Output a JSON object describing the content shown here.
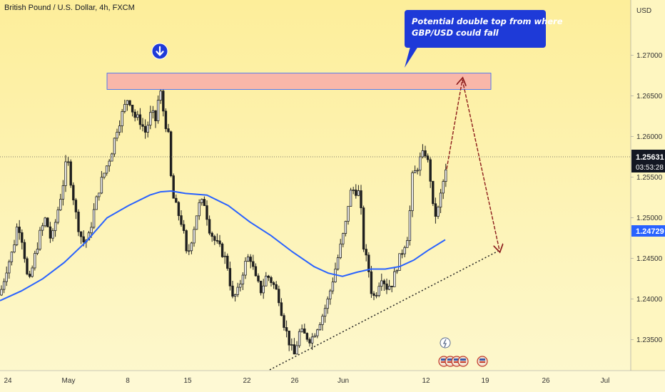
{
  "header": {
    "title": "British Pound / U.S. Dollar, 4h, FXCM"
  },
  "annotation": {
    "line1": "Potential double top from where",
    "line2": "GBP/USD could fall"
  },
  "colors": {
    "bg_top": "#fdee9a",
    "bg_bottom": "#fdf8cf",
    "candle": "#1f1f1f",
    "ma_line": "#2962ff",
    "zone_fill": "#f9b7a9",
    "zone_border": "#2962ff",
    "projection_arrow": "#8b1a1a",
    "trendline": "#1f1f1f",
    "annotation_bg": "#1e3ad8",
    "price_label_bg": "#131722",
    "ma_label_bg": "#2962ff"
  },
  "chart_data": {
    "type": "candlestick",
    "symbol": "GBP/USD",
    "interval": "4h",
    "currency_label": "USD",
    "ylim": [
      1.2312,
      1.2768
    ],
    "y_ticks": [
      "1.23500",
      "1.24000",
      "1.24500",
      "1.25000",
      "1.25500",
      "1.26000",
      "1.26500",
      "1.27000"
    ],
    "x_ticks": [
      "24",
      "May",
      "8",
      "15",
      "22",
      "26",
      "Jun",
      "12",
      "19",
      "26",
      "Jul"
    ],
    "current_price": "1.25631",
    "countdown": "03:53:28",
    "ma_value": "1.24729",
    "close_path": [
      [
        0,
        1.2405
      ],
      [
        10,
        1.244
      ],
      [
        18,
        1.246
      ],
      [
        25,
        1.2495
      ],
      [
        32,
        1.247
      ],
      [
        40,
        1.2415
      ],
      [
        48,
        1.245
      ],
      [
        56,
        1.248
      ],
      [
        64,
        1.25
      ],
      [
        72,
        1.247
      ],
      [
        80,
        1.2505
      ],
      [
        88,
        1.254
      ],
      [
        94,
        1.2575
      ],
      [
        102,
        1.253
      ],
      [
        108,
        1.2495
      ],
      [
        116,
        1.247
      ],
      [
        124,
        1.2475
      ],
      [
        132,
        1.251
      ],
      [
        140,
        1.254
      ],
      [
        148,
        1.256
      ],
      [
        156,
        1.258
      ],
      [
        164,
        1.261
      ],
      [
        172,
        1.263
      ],
      [
        180,
        1.265
      ],
      [
        188,
        1.2625
      ],
      [
        196,
        1.262
      ],
      [
        204,
        1.2605
      ],
      [
        212,
        1.263
      ],
      [
        218,
        1.262
      ],
      [
        224,
        1.266
      ],
      [
        230,
        1.2625
      ],
      [
        236,
        1.26
      ],
      [
        241,
        1.253
      ],
      [
        248,
        1.251
      ],
      [
        256,
        1.249
      ],
      [
        262,
        1.245
      ],
      [
        270,
        1.248
      ],
      [
        278,
        1.2515
      ],
      [
        286,
        1.252
      ],
      [
        294,
        1.2485
      ],
      [
        302,
        1.247
      ],
      [
        310,
        1.246
      ],
      [
        318,
        1.2445
      ],
      [
        326,
        1.24
      ],
      [
        334,
        1.241
      ],
      [
        342,
        1.244
      ],
      [
        350,
        1.2455
      ],
      [
        358,
        1.2425
      ],
      [
        366,
        1.241
      ],
      [
        374,
        1.243
      ],
      [
        382,
        1.242
      ],
      [
        390,
        1.2405
      ],
      [
        398,
        1.237
      ],
      [
        406,
        1.2345
      ],
      [
        412,
        1.233
      ],
      [
        420,
        1.236
      ],
      [
        428,
        1.2355
      ],
      [
        436,
        1.235
      ],
      [
        444,
        1.2365
      ],
      [
        452,
        1.238
      ],
      [
        460,
        1.24
      ],
      [
        468,
        1.243
      ],
      [
        476,
        1.246
      ],
      [
        484,
        1.249
      ],
      [
        490,
        1.253
      ],
      [
        496,
        1.2535
      ],
      [
        504,
        1.253
      ],
      [
        510,
        1.246
      ],
      [
        516,
        1.244
      ],
      [
        522,
        1.24
      ],
      [
        528,
        1.241
      ],
      [
        534,
        1.243
      ],
      [
        542,
        1.2415
      ],
      [
        550,
        1.242
      ],
      [
        556,
        1.244
      ],
      [
        564,
        1.246
      ],
      [
        572,
        1.248
      ],
      [
        578,
        1.255
      ],
      [
        584,
        1.256
      ],
      [
        590,
        1.2575
      ],
      [
        596,
        1.258
      ],
      [
        602,
        1.256
      ],
      [
        608,
        1.25
      ],
      [
        614,
        1.251
      ],
      [
        620,
        1.254
      ],
      [
        626,
        1.256
      ]
    ],
    "moving_average_path": [
      [
        0,
        1.2398
      ],
      [
        30,
        1.241
      ],
      [
        60,
        1.2425
      ],
      [
        90,
        1.2445
      ],
      [
        120,
        1.247
      ],
      [
        150,
        1.25
      ],
      [
        180,
        1.2515
      ],
      [
        210,
        1.2528
      ],
      [
        225,
        1.2532
      ],
      [
        240,
        1.2533
      ],
      [
        260,
        1.253
      ],
      [
        290,
        1.2528
      ],
      [
        320,
        1.2515
      ],
      [
        350,
        1.2495
      ],
      [
        380,
        1.2478
      ],
      [
        410,
        1.2458
      ],
      [
        440,
        1.244
      ],
      [
        460,
        1.2432
      ],
      [
        480,
        1.2428
      ],
      [
        500,
        1.2433
      ],
      [
        520,
        1.2437
      ],
      [
        540,
        1.2437
      ],
      [
        560,
        1.244
      ],
      [
        580,
        1.2448
      ],
      [
        600,
        1.246
      ],
      [
        624,
        1.2473
      ]
    ],
    "resistance_zone": {
      "x_start": 150,
      "x_end": 688,
      "y_low": 1.2658,
      "y_high": 1.2678
    },
    "trendline": {
      "x1": 378,
      "y1": 1.2313,
      "x2": 700,
      "y2": 1.246
    },
    "projection": [
      [
        626,
        1.256
      ],
      [
        648,
        1.267
      ],
      [
        700,
        1.246
      ]
    ],
    "peak_marker": {
      "x": 224,
      "y": 1.2705
    },
    "event_icons": {
      "x": 624,
      "count": 5
    }
  }
}
